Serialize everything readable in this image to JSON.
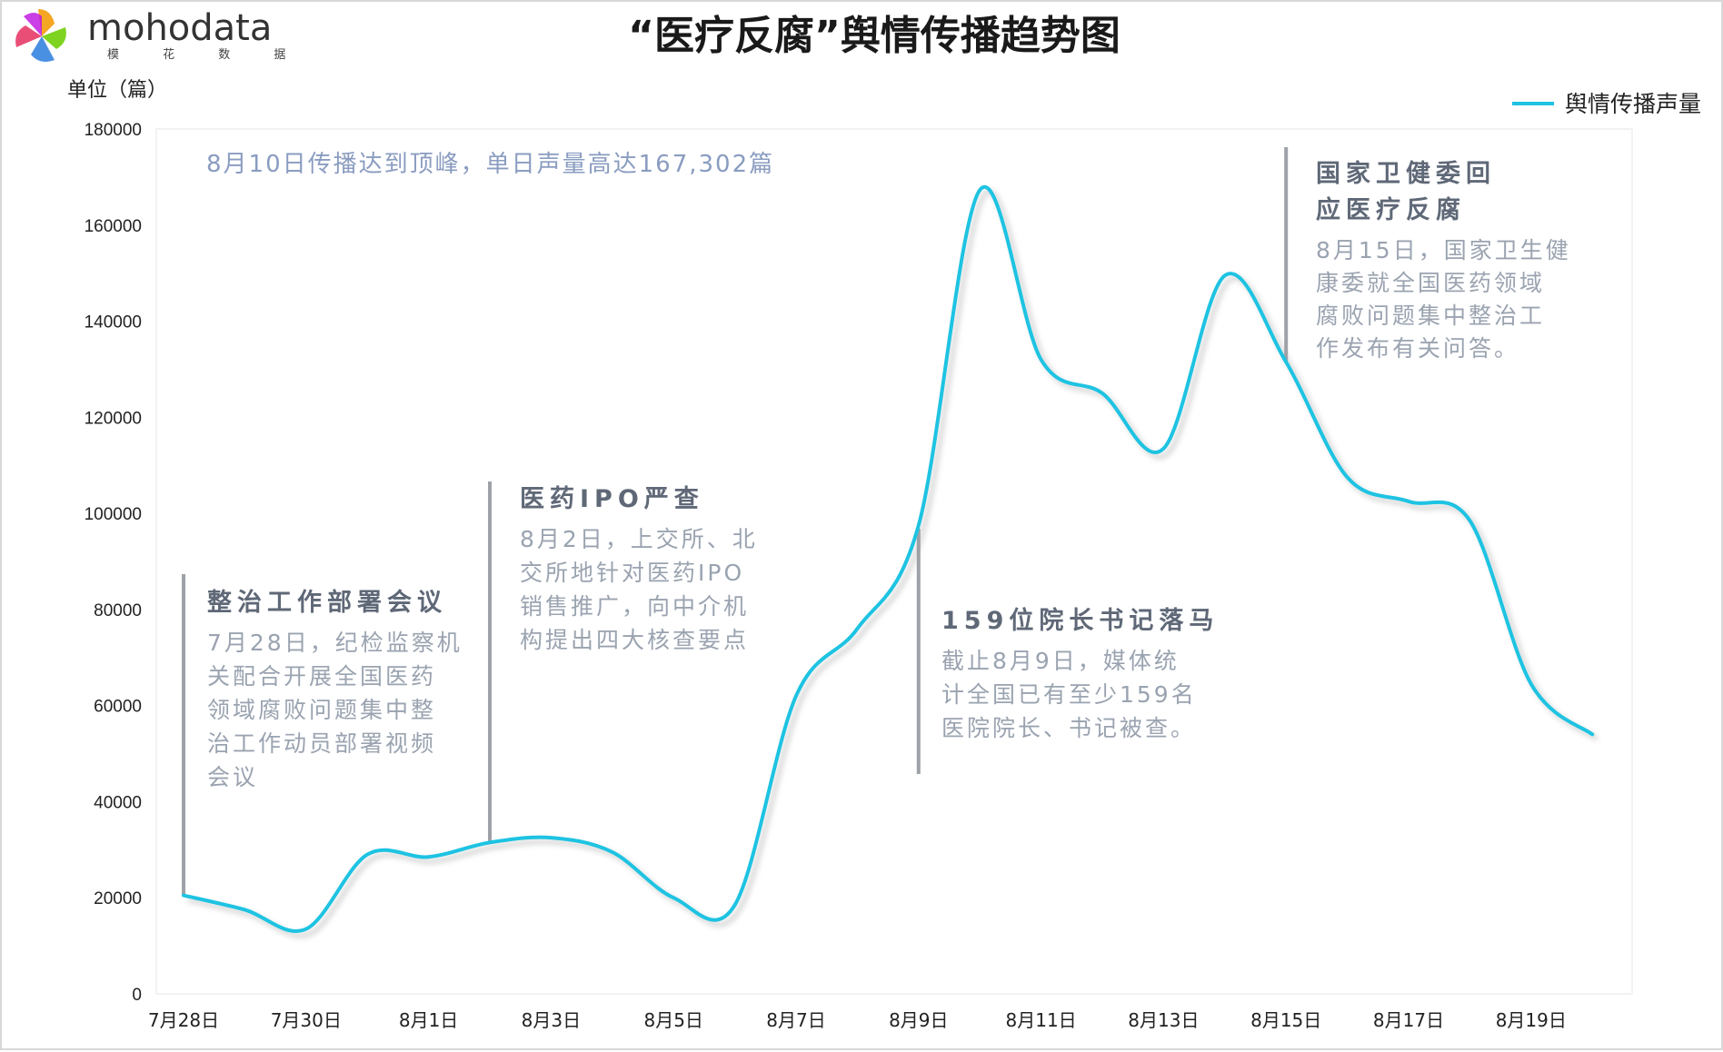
{
  "logo": {
    "name": "mohodata",
    "sub": "模 花 数 据"
  },
  "chart_data": {
    "type": "line",
    "title": "“医疗反腐”舆情传播趋势图",
    "unit_label": "单位（篇）",
    "ylabel": "",
    "xlabel": "",
    "ylim": [
      0,
      180000
    ],
    "yticks": [
      0,
      20000,
      40000,
      60000,
      80000,
      100000,
      120000,
      140000,
      160000,
      180000
    ],
    "xtick_labels": [
      "7月28日",
      "7月30日",
      "8月1日",
      "8月3日",
      "8月5日",
      "8月7日",
      "8月9日",
      "8月11日",
      "8月13日",
      "8月15日",
      "8月17日",
      "8月19日"
    ],
    "x": [
      "7月28日",
      "7月29日",
      "7月30日",
      "7月31日",
      "8月1日",
      "8月2日",
      "8月3日",
      "8月4日",
      "8月5日",
      "8月6日",
      "8月7日",
      "8月8日",
      "8月9日",
      "8月10日",
      "8月11日",
      "8月12日",
      "8月13日",
      "8月14日",
      "8月15日",
      "8月16日",
      "8月17日",
      "8月18日",
      "8月19日",
      "8月20日"
    ],
    "series": [
      {
        "name": "舆情传播声量",
        "color": "#1ec3e2",
        "values": [
          20500,
          17500,
          13500,
          29000,
          28500,
          31500,
          32500,
          29500,
          20000,
          18500,
          62000,
          76000,
          97500,
          167302,
          132000,
          125000,
          113500,
          149500,
          131500,
          107500,
          102500,
          98500,
          64500,
          54000
        ]
      }
    ],
    "legend": {
      "position": "top-right",
      "label": "舆情传播声量"
    },
    "peak_annotation": "8月10日传播达到顶峰，单日声量高达167,302篇",
    "annotations": [
      {
        "x": "7月28日",
        "title": "整治工作部署会议",
        "lines": [
          "7月28日，纪检监察机",
          "关配合开展全国医药",
          "领域腐败问题集中整",
          "治工作动员部署视频",
          "会议"
        ]
      },
      {
        "x": "8月2日",
        "title": "医药IPO严查",
        "lines": [
          "8月2日，上交所、北",
          "交所地针对医药IPO",
          "销售推广，向中介机",
          "构提出四大核查要点"
        ]
      },
      {
        "x": "8月9日",
        "title": "159位院长书记落马",
        "lines": [
          "截止8月9日，媒体统",
          "计全国已有至少159名",
          "医院院长、书记被查。"
        ]
      },
      {
        "x": "8月15日",
        "title": "国家卫健委回应医疗反腐",
        "lines": [
          "8月15日，国家卫生健",
          "康委就全国医药领域",
          "腐败问题集中整治工",
          "作发布有关问答。"
        ]
      }
    ]
  }
}
